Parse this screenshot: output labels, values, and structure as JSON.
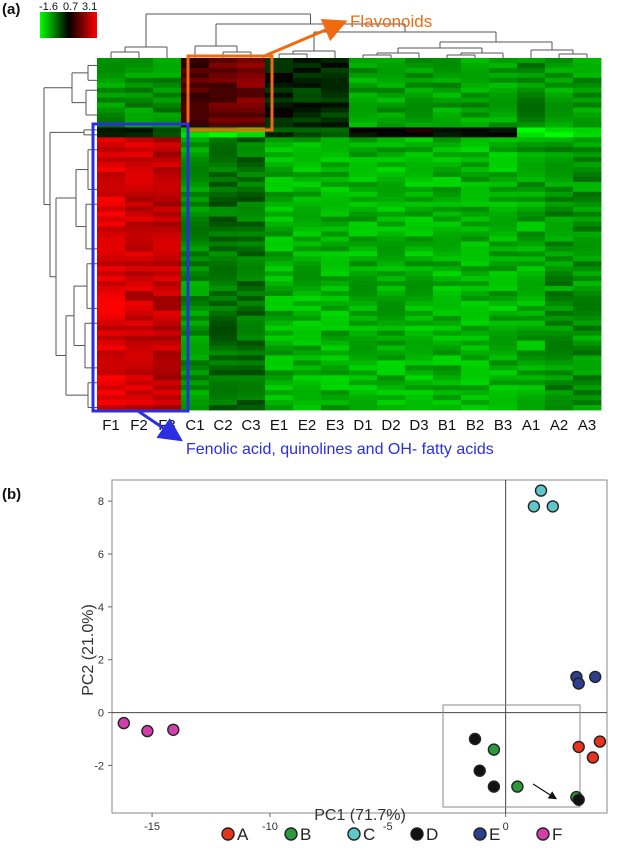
{
  "chart_data": [
    {
      "type": "heatmap",
      "panel_label": "(a)",
      "columns": [
        "F1",
        "F2",
        "F3",
        "C1",
        "C2",
        "C3",
        "E1",
        "E2",
        "E3",
        "D1",
        "D2",
        "D3",
        "B1",
        "B2",
        "B3",
        "A1",
        "A2",
        "A3"
      ],
      "color_scale": {
        "min": -1.6,
        "mid": 0.7,
        "max": 3.1,
        "labels": [
          "-1.6",
          "0.7",
          "3.1"
        ],
        "colors": [
          "#00ff00",
          "#000000",
          "#ff0000"
        ]
      },
      "row_blocks": [
        {
          "name": "flavonoid-block",
          "rows": 14,
          "values": [
            -0.6,
            -0.6,
            -0.6,
            1.4,
            1.6,
            1.8,
            0.5,
            0.3,
            0.3,
            -0.7,
            -0.7,
            -0.7,
            -0.7,
            -0.7,
            -0.7,
            -0.6,
            -0.7,
            -0.7
          ]
        },
        {
          "name": "separator-row",
          "rows": 2,
          "values": [
            0.2,
            0.2,
            0.1,
            -1.4,
            -1.3,
            -1.4,
            0.1,
            0.0,
            0.0,
            0.6,
            0.6,
            0.7,
            0.7,
            0.7,
            0.6,
            -1.5,
            -1.6,
            -1.3
          ]
        },
        {
          "name": "phenolic-block",
          "rows": 55,
          "values": [
            2.8,
            2.6,
            2.5,
            -0.6,
            -0.3,
            -0.3,
            -0.9,
            -0.9,
            -0.9,
            -0.9,
            -0.9,
            -0.9,
            -0.9,
            -0.9,
            -0.9,
            -0.8,
            -0.6,
            -0.6
          ]
        }
      ],
      "annotations": [
        {
          "label": "Flavonoids",
          "color": "#f06a10",
          "columns": [
            "C1",
            "C2",
            "C3"
          ]
        },
        {
          "label": "Fenolic acid, quinolines and OH- fatty acids",
          "color": "#2b2fe0",
          "columns": [
            "F1",
            "F2",
            "F3"
          ]
        }
      ]
    },
    {
      "type": "scatter",
      "panel_label": "(b)",
      "xlabel": "PC1 (71.7%)",
      "ylabel": "PC2 (21.0%)",
      "xlim": [
        -16.7,
        4.3
      ],
      "ylim": [
        -3.8,
        8.8
      ],
      "xticks": [
        -15,
        -10,
        -5,
        0
      ],
      "yticks": [
        -2,
        0,
        2,
        4,
        6,
        8
      ],
      "xtick_labels": [
        "-15",
        "-10",
        "-5",
        "0"
      ],
      "ytick_labels": [
        "-2",
        "0",
        "2",
        "4",
        "6",
        "8"
      ],
      "grid": false,
      "legend_position": "bottom",
      "series": [
        {
          "name": "A",
          "color": "#e8321e",
          "x": [
            3.1,
            3.7,
            4.0
          ],
          "y": [
            -1.3,
            -1.7,
            -1.1
          ]
        },
        {
          "name": "B",
          "color": "#2c9a3a",
          "x": [
            -0.5,
            0.5,
            3.0
          ],
          "y": [
            -1.4,
            -2.8,
            -3.2
          ]
        },
        {
          "name": "C",
          "color": "#5ec8c8",
          "x": [
            1.2,
            1.5,
            2.0
          ],
          "y": [
            7.8,
            8.4,
            7.8
          ]
        },
        {
          "name": "D",
          "color": "#111111",
          "x": [
            -1.3,
            -1.1,
            -0.5,
            3.1
          ],
          "y": [
            -1.0,
            -2.2,
            -2.8,
            -3.3
          ]
        },
        {
          "name": "E",
          "color": "#2c3f8c",
          "x": [
            3.0,
            3.1,
            3.8
          ],
          "y": [
            1.35,
            1.1,
            1.35
          ]
        },
        {
          "name": "F",
          "color": "#d23faa",
          "x": [
            -16.2,
            -15.2,
            -14.1
          ],
          "y": [
            -0.4,
            -0.7,
            -0.65
          ]
        }
      ]
    }
  ]
}
